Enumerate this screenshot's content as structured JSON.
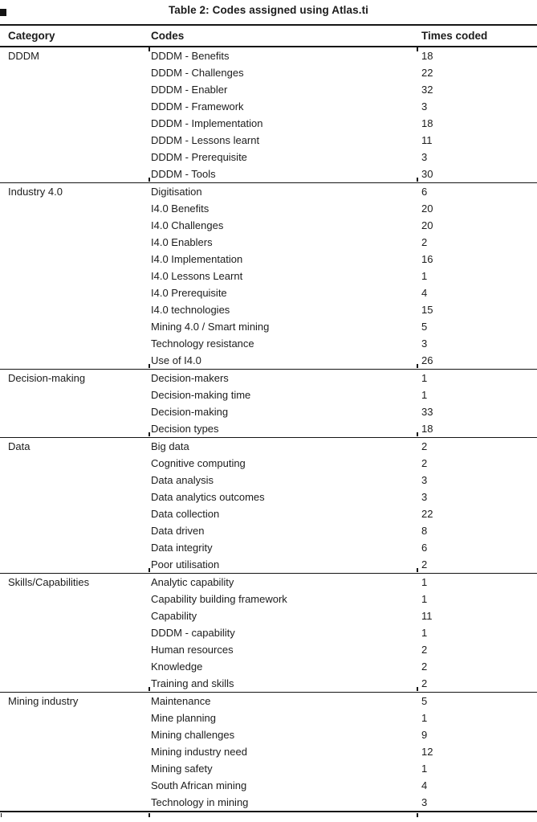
{
  "page": {
    "title": "Table 2: Codes assigned using Atlas.ti"
  },
  "table": {
    "columns": {
      "category": "Category",
      "codes": "Codes",
      "times_coded": "Times coded"
    },
    "sections": [
      {
        "category": "DDDM",
        "rows": [
          {
            "code": "DDDM - Benefits",
            "count": "18"
          },
          {
            "code": "DDDM - Challenges",
            "count": "22"
          },
          {
            "code": "DDDM - Enabler",
            "count": "32"
          },
          {
            "code": "DDDM - Framework",
            "count": "3"
          },
          {
            "code": "DDDM - Implementation",
            "count": "18"
          },
          {
            "code": "DDDM - Lessons learnt",
            "count": "11"
          },
          {
            "code": "DDDM - Prerequisite",
            "count": "3"
          },
          {
            "code": "DDDM - Tools",
            "count": "30"
          }
        ]
      },
      {
        "category": "Industry 4.0",
        "rows": [
          {
            "code": "Digitisation",
            "count": "6"
          },
          {
            "code": "I4.0 Benefits",
            "count": "20"
          },
          {
            "code": "I4.0 Challenges",
            "count": "20"
          },
          {
            "code": "I4.0 Enablers",
            "count": "2"
          },
          {
            "code": "I4.0 Implementation",
            "count": "16"
          },
          {
            "code": "I4.0 Lessons Learnt",
            "count": "1"
          },
          {
            "code": "I4.0 Prerequisite",
            "count": "4"
          },
          {
            "code": "I4.0 technologies",
            "count": "15"
          },
          {
            "code": "Mining 4.0 / Smart mining",
            "count": "5"
          },
          {
            "code": "Technology resistance",
            "count": "3"
          },
          {
            "code": "Use of I4.0",
            "count": "26"
          }
        ]
      },
      {
        "category": "Decision-making",
        "rows": [
          {
            "code": "Decision-makers",
            "count": "1"
          },
          {
            "code": "Decision-making time",
            "count": "1"
          },
          {
            "code": "Decision-making",
            "count": "33"
          },
          {
            "code": "Decision types",
            "count": "18"
          }
        ]
      },
      {
        "category": "Data",
        "rows": [
          {
            "code": "Big data",
            "count": "2"
          },
          {
            "code": "Cognitive computing",
            "count": "2"
          },
          {
            "code": "Data analysis",
            "count": "3"
          },
          {
            "code": "Data analytics outcomes",
            "count": "3"
          },
          {
            "code": "Data collection",
            "count": "22"
          },
          {
            "code": "Data driven",
            "count": "8"
          },
          {
            "code": "Data integrity",
            "count": "6"
          },
          {
            "code": "Poor utilisation",
            "count": "2"
          }
        ]
      },
      {
        "category": "Skills/Capabilities",
        "rows": [
          {
            "code": "Analytic capability",
            "count": "1"
          },
          {
            "code": "Capability building framework",
            "count": "1"
          },
          {
            "code": "Capability",
            "count": "11"
          },
          {
            "code": "DDDM - capability",
            "count": "1"
          },
          {
            "code": "Human resources",
            "count": "2"
          },
          {
            "code": "Knowledge",
            "count": "2"
          },
          {
            "code": "Training and skills",
            "count": "2"
          }
        ]
      },
      {
        "category": "Mining industry",
        "rows": [
          {
            "code": "Maintenance",
            "count": "5"
          },
          {
            "code": "Mine planning",
            "count": "1"
          },
          {
            "code": "Mining challenges",
            "count": "9"
          },
          {
            "code": "Mining industry need",
            "count": "12"
          },
          {
            "code": "Mining safety",
            "count": "1"
          },
          {
            "code": "South African mining",
            "count": "4"
          },
          {
            "code": "Technology in mining",
            "count": "3"
          }
        ]
      }
    ]
  },
  "colors": {
    "text": "#1c1c1c",
    "rule": "#151515",
    "background": "#ffffff"
  }
}
